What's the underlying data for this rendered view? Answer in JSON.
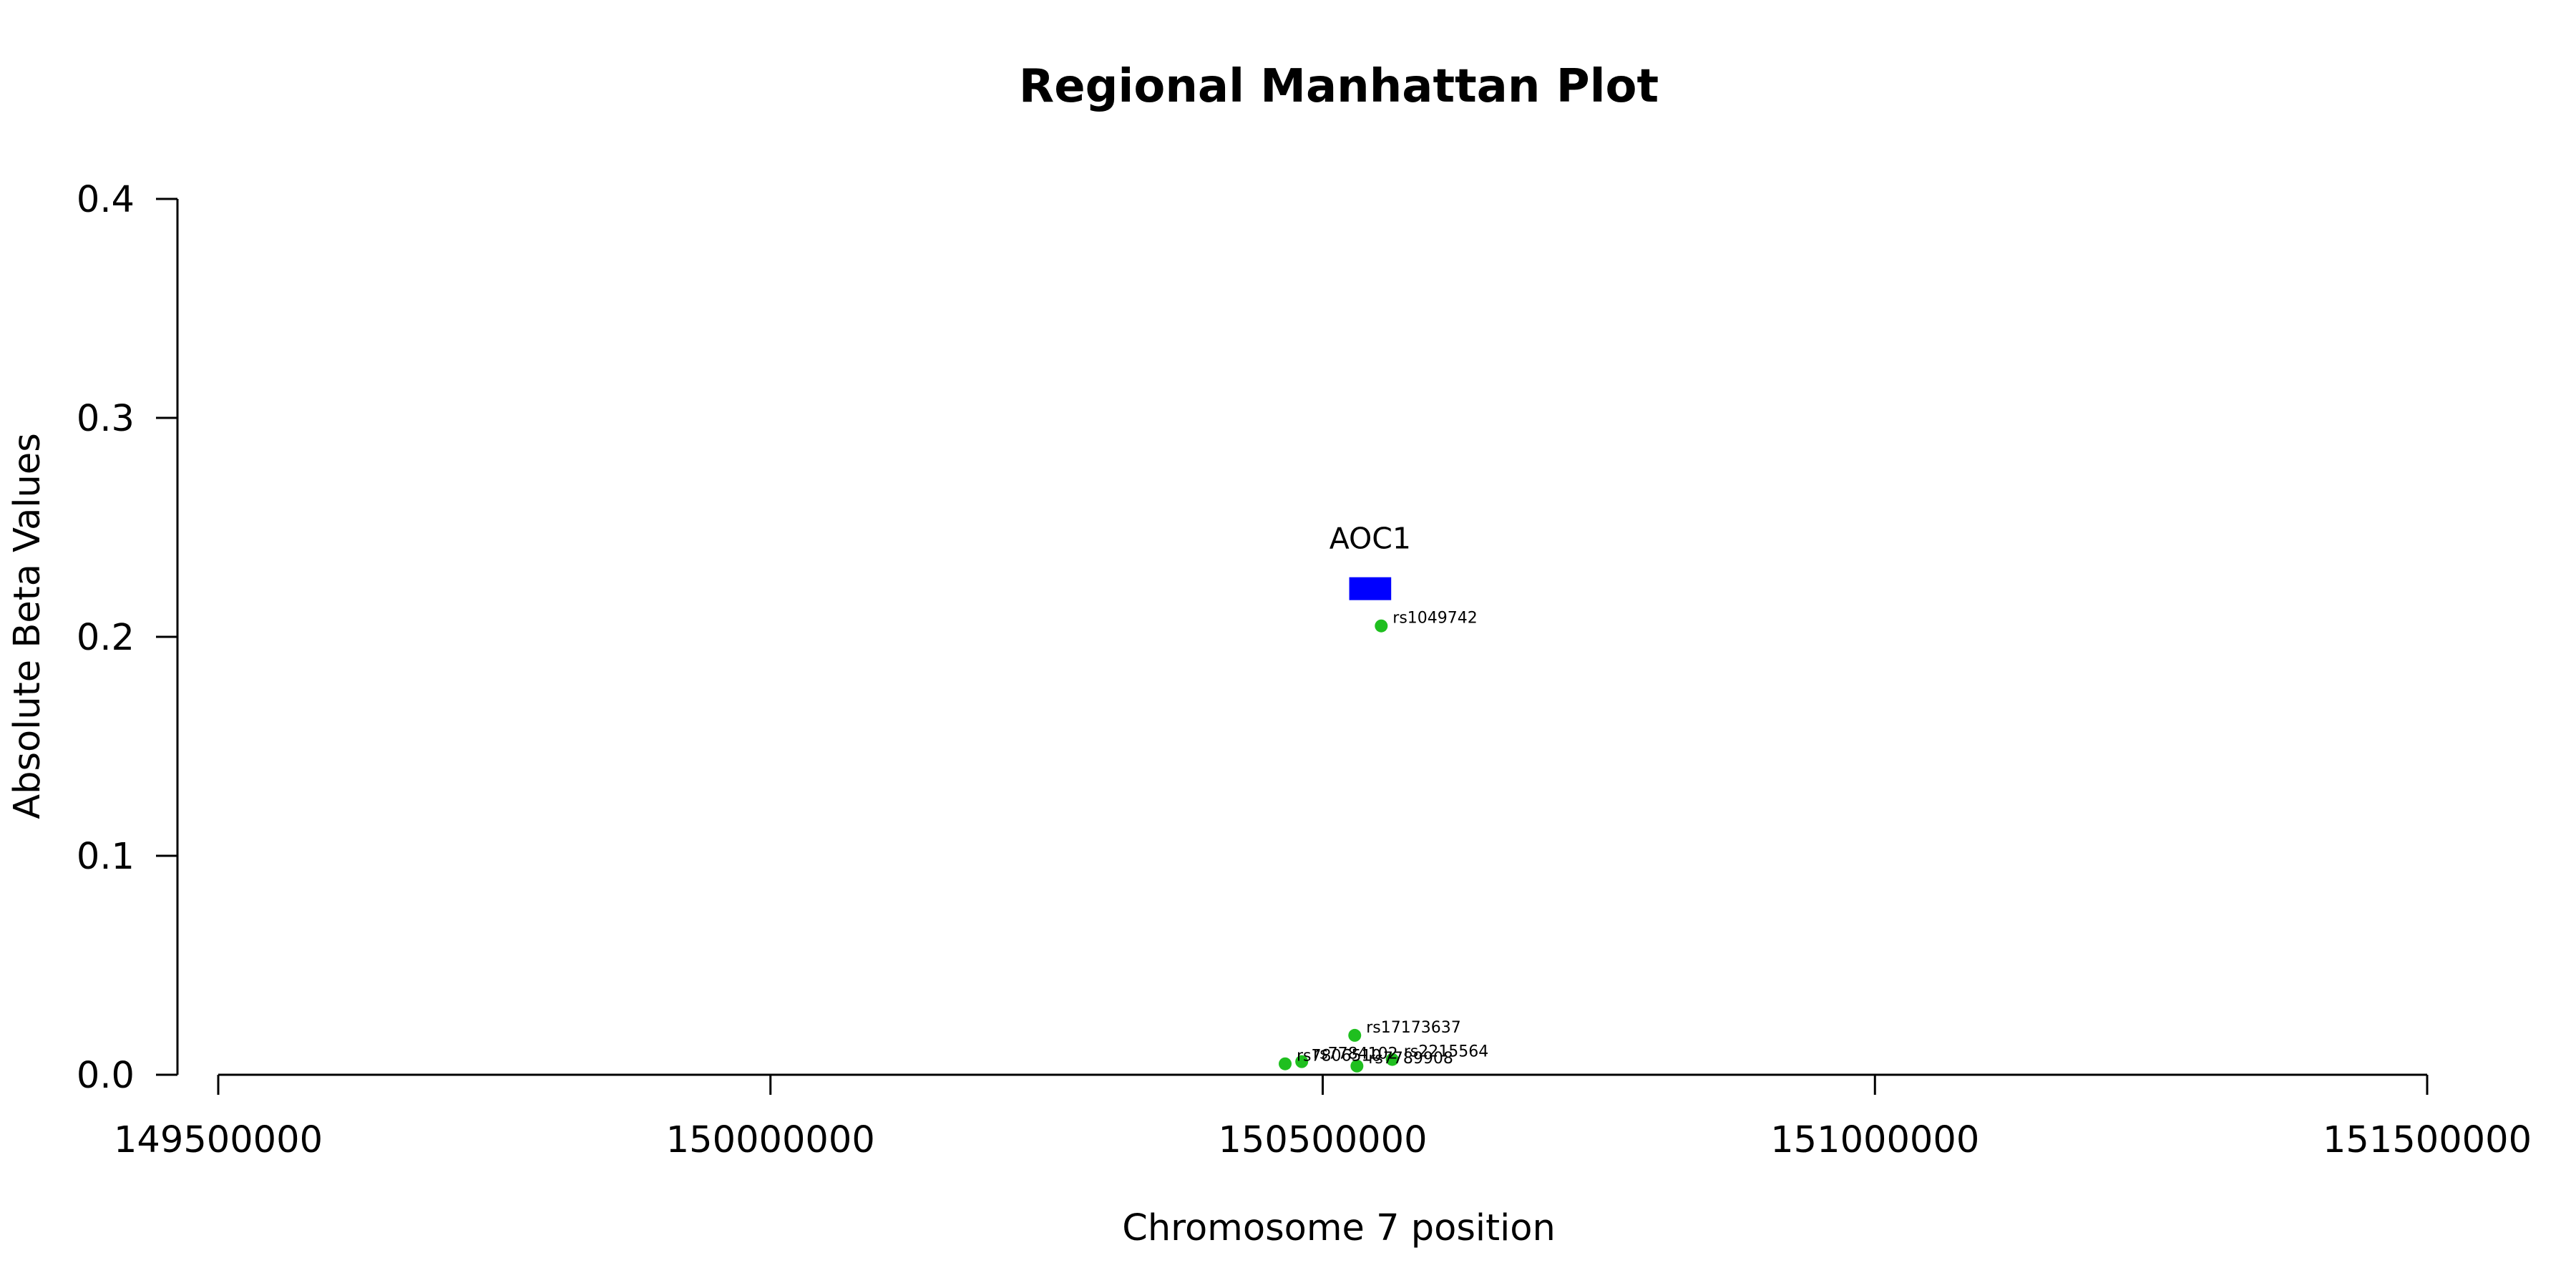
{
  "chart_data": {
    "type": "scatter",
    "title": "Regional Manhattan Plot",
    "xlabel": "Chromosome 7 position",
    "ylabel": "Absolute Beta Values",
    "xlim": [
      149500000,
      151500000
    ],
    "ylim": [
      0,
      0.4
    ],
    "x_ticks": [
      "149500000",
      "150000000",
      "150500000",
      "151000000",
      "151500000"
    ],
    "y_ticks": [
      "0.0",
      "0.1",
      "0.2",
      "0.3",
      "0.4"
    ],
    "grid": false,
    "gene": {
      "name": "AOC1",
      "start": 150524000,
      "end": 150562000,
      "y": 0.222,
      "color": "#0000ff"
    },
    "point_color": "#1fbf1f",
    "points": [
      {
        "label": "rs1049742",
        "x": 150553000,
        "y": 0.205
      },
      {
        "label": "rs17173637",
        "x": 150529000,
        "y": 0.018
      },
      {
        "label": "rs2215564",
        "x": 150563000,
        "y": 0.007
      },
      {
        "label": "rs7789908",
        "x": 150531000,
        "y": 0.004
      },
      {
        "label": "rs7784102",
        "x": 150481000,
        "y": 0.006
      },
      {
        "label": "rs7806510",
        "x": 150466000,
        "y": 0.005
      }
    ]
  }
}
